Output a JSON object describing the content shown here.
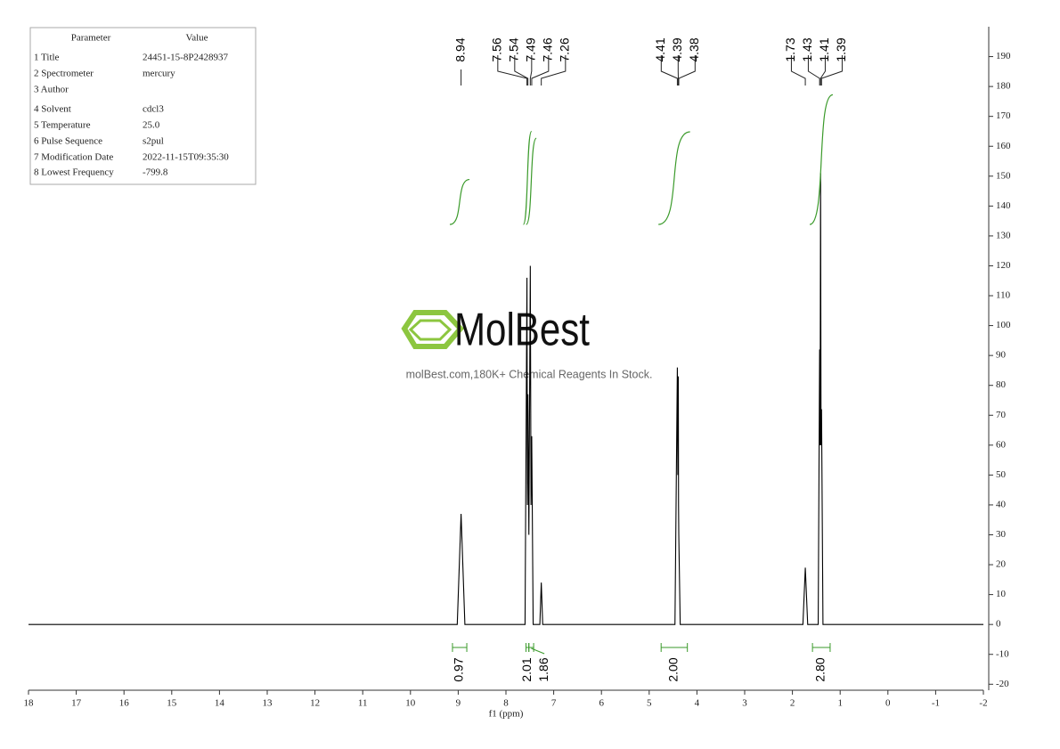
{
  "parameter_table": {
    "header": [
      "Parameter",
      "Value"
    ],
    "rows": [
      [
        "1 Title",
        "24451-15-8P2428937"
      ],
      [
        "2 Spectrometer",
        "mercury"
      ],
      [
        "3 Author"
      ],
      [
        "4 Solvent",
        "cdcl3"
      ],
      [
        "5 Temperature",
        "25.0"
      ],
      [
        "6 Pulse Sequence",
        "s2pul"
      ],
      [
        "7 Modification Date",
        "2022-11-15T09:35:30"
      ],
      [
        "8 Lowest Frequency",
        "-799.8"
      ]
    ]
  },
  "watermark": {
    "brand": "MolBest",
    "tagline": "molBest.com,180K+ Chemical Reagents In Stock."
  },
  "chart_data": {
    "type": "line",
    "xlabel": "f1 (ppm)",
    "color": "#000000",
    "x": [
      18,
      9.02,
      8.94,
      8.86,
      7.6,
      7.56,
      7.55,
      7.54,
      7.52,
      7.49,
      7.475,
      7.46,
      7.43,
      7.29,
      7.26,
      7.23,
      4.46,
      4.41,
      4.4,
      4.39,
      4.385,
      4.38,
      4.35,
      1.78,
      1.73,
      1.68,
      1.46,
      1.43,
      1.42,
      1.41,
      1.4,
      1.39,
      1.36,
      -2
    ],
    "values": [
      0,
      0,
      37,
      0,
      0,
      116,
      40,
      77,
      30,
      120,
      40,
      63,
      0,
      0,
      14,
      0,
      0,
      86,
      50,
      83,
      40,
      30,
      0,
      0,
      19,
      0,
      0,
      92,
      60,
      151,
      60,
      72,
      0,
      0
    ],
    "xlim": [
      18,
      -2
    ],
    "xticks": [
      18,
      17,
      16,
      15,
      14,
      13,
      12,
      11,
      10,
      9,
      8,
      7,
      6,
      5,
      4,
      3,
      2,
      1,
      0,
      -1,
      -2
    ],
    "ylim": [
      -22,
      200
    ],
    "yticks": [
      -20,
      -10,
      0,
      10,
      20,
      30,
      40,
      50,
      60,
      70,
      80,
      90,
      100,
      110,
      120,
      130,
      140,
      150,
      160,
      170,
      180,
      190
    ],
    "peak_labels": [
      [
        8.94
      ],
      [
        7.56,
        7.54,
        7.49,
        7.46,
        7.26
      ],
      [
        4.41,
        4.39,
        4.38
      ],
      [
        1.73,
        1.43,
        1.41,
        1.39
      ]
    ],
    "integrals": {
      "color": "#3a9a2a",
      "ranges": [
        [
          9.12,
          8.82
        ],
        [
          7.58,
          7.52
        ],
        [
          7.52,
          7.42
        ],
        [
          4.75,
          4.2
        ],
        [
          1.58,
          1.21
        ]
      ],
      "values": [
        0.97,
        2.01,
        1.86,
        2,
        2.8
      ],
      "value_labels": [
        "0.97",
        "2.01",
        "1.86",
        "2.00",
        "2.80"
      ]
    }
  }
}
